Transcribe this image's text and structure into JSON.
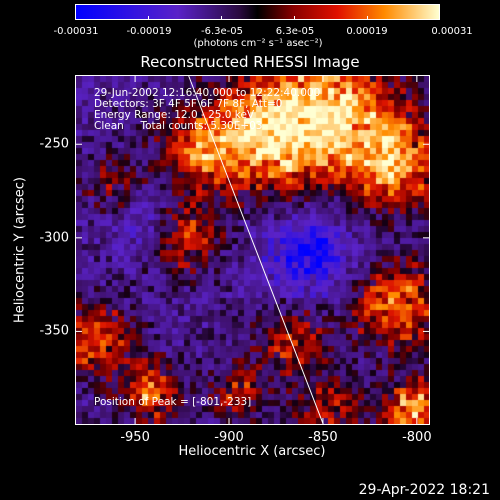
{
  "colorbar": {
    "ticks": [
      "-0.00031",
      "-0.00019",
      "-6.3e-05",
      "6.3e-05",
      "0.00019",
      "0.00031"
    ],
    "units": "(photons cm⁻² s⁻¹ asec⁻²)"
  },
  "title": "Reconstructed RHESSI Image",
  "info": {
    "line1": "29-Jun-2002 12:16:40.000 to 12:22:40.000",
    "line2": "Detectors: 3F 4F 5F 6F 7F 8F, Att=0",
    "line3": "Energy Range: 12.0 - 25.0 keV",
    "line4": "Clean     Total counts: 5.30E+03",
    "peak": "Position of Peak = [-801,-233]"
  },
  "footer": "29-Apr-2022 18:21",
  "chart_data": {
    "type": "heatmap",
    "title": "Reconstructed RHESSI Image",
    "xlabel": "Heliocentric X (arcsec)",
    "ylabel": "Heliocentric Y (arcsec)",
    "xlim": [
      -982,
      -793
    ],
    "ylim": [
      -400,
      -213
    ],
    "x_ticks": [
      -950,
      -900,
      -850,
      -800
    ],
    "y_ticks": [
      -250,
      -300,
      -350
    ],
    "x_tick_labels": [
      "-950",
      "-900",
      "-850",
      "-800"
    ],
    "y_tick_labels": [
      "-250",
      "-300",
      "-350"
    ],
    "colorbar_range": [
      -0.00031,
      0.00031
    ],
    "peak_position": [
      -801,
      -233
    ],
    "limb_line": {
      "x": [
        -922,
        -850
      ],
      "y": [
        -213,
        -400
      ]
    },
    "grid": false
  }
}
